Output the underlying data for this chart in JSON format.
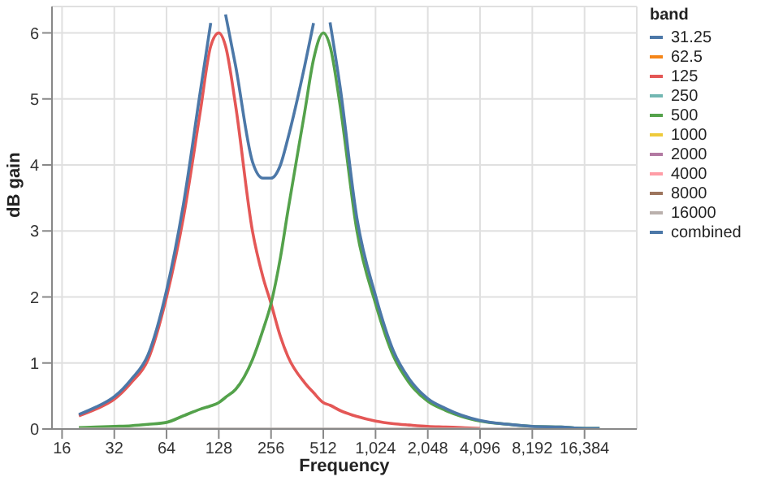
{
  "chart_data": {
    "type": "line",
    "xlabel": "Frequency",
    "ylabel": "dB gain",
    "legend_title": "band",
    "log": "x",
    "grid": true,
    "legend": "top right",
    "x": [
      20,
      25,
      32,
      40,
      50,
      64,
      80,
      100,
      115,
      128,
      140,
      160,
      200,
      230,
      256,
      290,
      320,
      400,
      450,
      512,
      560,
      640,
      800,
      1024,
      1300,
      1600,
      2048,
      2600,
      3200,
      4096,
      6000,
      8192,
      12000,
      16384,
      20000
    ],
    "xlim": [
      14,
      32768
    ],
    "xticks": [
      16,
      32,
      64,
      128,
      256,
      512,
      {
        "value": 1024,
        "label": "1,024"
      },
      {
        "value": 2048,
        "label": "2,048"
      },
      {
        "value": 4096,
        "label": "4,096"
      },
      {
        "value": 8192,
        "label": "8,192"
      },
      {
        "value": 16384,
        "label": "16,384"
      }
    ],
    "ylim": [
      0,
      6.4
    ],
    "yticks": [
      0,
      1,
      2,
      3,
      4,
      5,
      6
    ],
    "series": [
      {
        "name": "31.25",
        "color": "#4c78a8",
        "values": [
          null,
          null,
          null,
          null,
          null,
          null,
          null,
          null,
          null,
          null,
          null,
          null,
          null,
          null,
          null,
          null,
          null,
          null,
          null,
          null,
          null,
          null,
          null,
          null,
          null,
          null,
          null,
          null,
          null,
          null,
          null,
          null,
          null,
          null,
          null
        ]
      },
      {
        "name": "62.5",
        "color": "#f58518",
        "values": [
          null,
          null,
          null,
          null,
          null,
          null,
          null,
          null,
          null,
          null,
          null,
          null,
          null,
          null,
          null,
          null,
          null,
          null,
          null,
          null,
          null,
          null,
          null,
          null,
          null,
          null,
          null,
          null,
          null,
          null,
          null,
          null,
          null,
          null,
          null
        ]
      },
      {
        "name": "125",
        "color": "#e45756",
        "values": [
          0.2,
          0.3,
          0.45,
          0.7,
          1.05,
          2.0,
          3.2,
          4.8,
          5.8,
          6.0,
          5.8,
          4.9,
          3.0,
          2.3,
          1.9,
          1.4,
          1.1,
          0.7,
          0.55,
          0.4,
          0.36,
          0.28,
          0.19,
          0.12,
          0.08,
          0.06,
          0.04,
          0.03,
          0.02,
          0.01,
          null,
          null,
          null,
          null,
          null
        ]
      },
      {
        "name": "250",
        "color": "#72b7b2",
        "values": [
          null,
          null,
          null,
          null,
          null,
          null,
          null,
          null,
          null,
          null,
          null,
          null,
          null,
          null,
          null,
          null,
          null,
          null,
          null,
          null,
          null,
          null,
          null,
          null,
          null,
          null,
          null,
          null,
          null,
          null,
          null,
          null,
          null,
          null,
          null
        ]
      },
      {
        "name": "500",
        "color": "#54a24b",
        "values": [
          0.02,
          0.03,
          0.04,
          0.05,
          0.07,
          0.1,
          0.2,
          0.3,
          0.35,
          0.4,
          0.48,
          0.6,
          1.05,
          1.5,
          1.9,
          2.6,
          3.3,
          4.8,
          5.6,
          6.0,
          5.8,
          4.9,
          3.0,
          1.9,
          1.1,
          0.7,
          0.42,
          0.28,
          0.19,
          0.12,
          0.07,
          0.04,
          0.03,
          0.01,
          0.01
        ]
      },
      {
        "name": "1000",
        "color": "#eeca3b",
        "values": [
          null,
          null,
          null,
          null,
          null,
          null,
          null,
          null,
          null,
          null,
          null,
          null,
          null,
          null,
          null,
          null,
          null,
          null,
          null,
          null,
          null,
          null,
          null,
          null,
          null,
          null,
          null,
          null,
          null,
          null,
          null,
          null,
          null,
          null,
          null
        ]
      },
      {
        "name": "2000",
        "color": "#b279a2",
        "values": [
          null,
          null,
          null,
          null,
          null,
          null,
          null,
          null,
          null,
          null,
          null,
          null,
          null,
          null,
          null,
          null,
          null,
          null,
          null,
          null,
          null,
          null,
          null,
          null,
          null,
          null,
          null,
          null,
          null,
          null,
          null,
          null,
          null,
          null,
          null
        ]
      },
      {
        "name": "4000",
        "color": "#ff9da6",
        "values": [
          null,
          null,
          null,
          null,
          null,
          null,
          null,
          null,
          null,
          null,
          null,
          null,
          null,
          null,
          null,
          null,
          null,
          null,
          null,
          null,
          null,
          null,
          null,
          null,
          null,
          null,
          null,
          null,
          null,
          null,
          null,
          null,
          null,
          null,
          null
        ]
      },
      {
        "name": "8000",
        "color": "#9d755d",
        "values": [
          null,
          null,
          null,
          null,
          null,
          null,
          null,
          null,
          null,
          null,
          null,
          null,
          null,
          null,
          null,
          null,
          null,
          null,
          null,
          null,
          null,
          null,
          null,
          null,
          null,
          null,
          null,
          null,
          null,
          null,
          null,
          null,
          null,
          null,
          null
        ]
      },
      {
        "name": "16000",
        "color": "#bab0ac",
        "values": [
          0,
          0,
          0,
          0,
          0,
          0,
          0,
          0,
          0,
          0,
          0,
          0,
          0,
          0,
          0,
          0,
          0,
          0,
          0,
          0,
          0,
          0,
          0,
          0,
          0,
          0,
          0,
          0,
          0,
          0,
          0,
          0,
          0,
          0,
          0
        ]
      },
      {
        "name": "combined",
        "color": "#4c78a8",
        "values": [
          0.22,
          0.33,
          0.49,
          0.75,
          1.12,
          2.1,
          3.4,
          5.1,
          6.15,
          null,
          6.28,
          5.5,
          4.05,
          3.8,
          3.8,
          4.0,
          4.4,
          5.5,
          6.15,
          null,
          6.16,
          5.18,
          3.19,
          2.02,
          1.18,
          0.76,
          0.46,
          0.31,
          0.21,
          0.13,
          0.07,
          0.04,
          0.03,
          0.01,
          0.01
        ]
      }
    ]
  }
}
